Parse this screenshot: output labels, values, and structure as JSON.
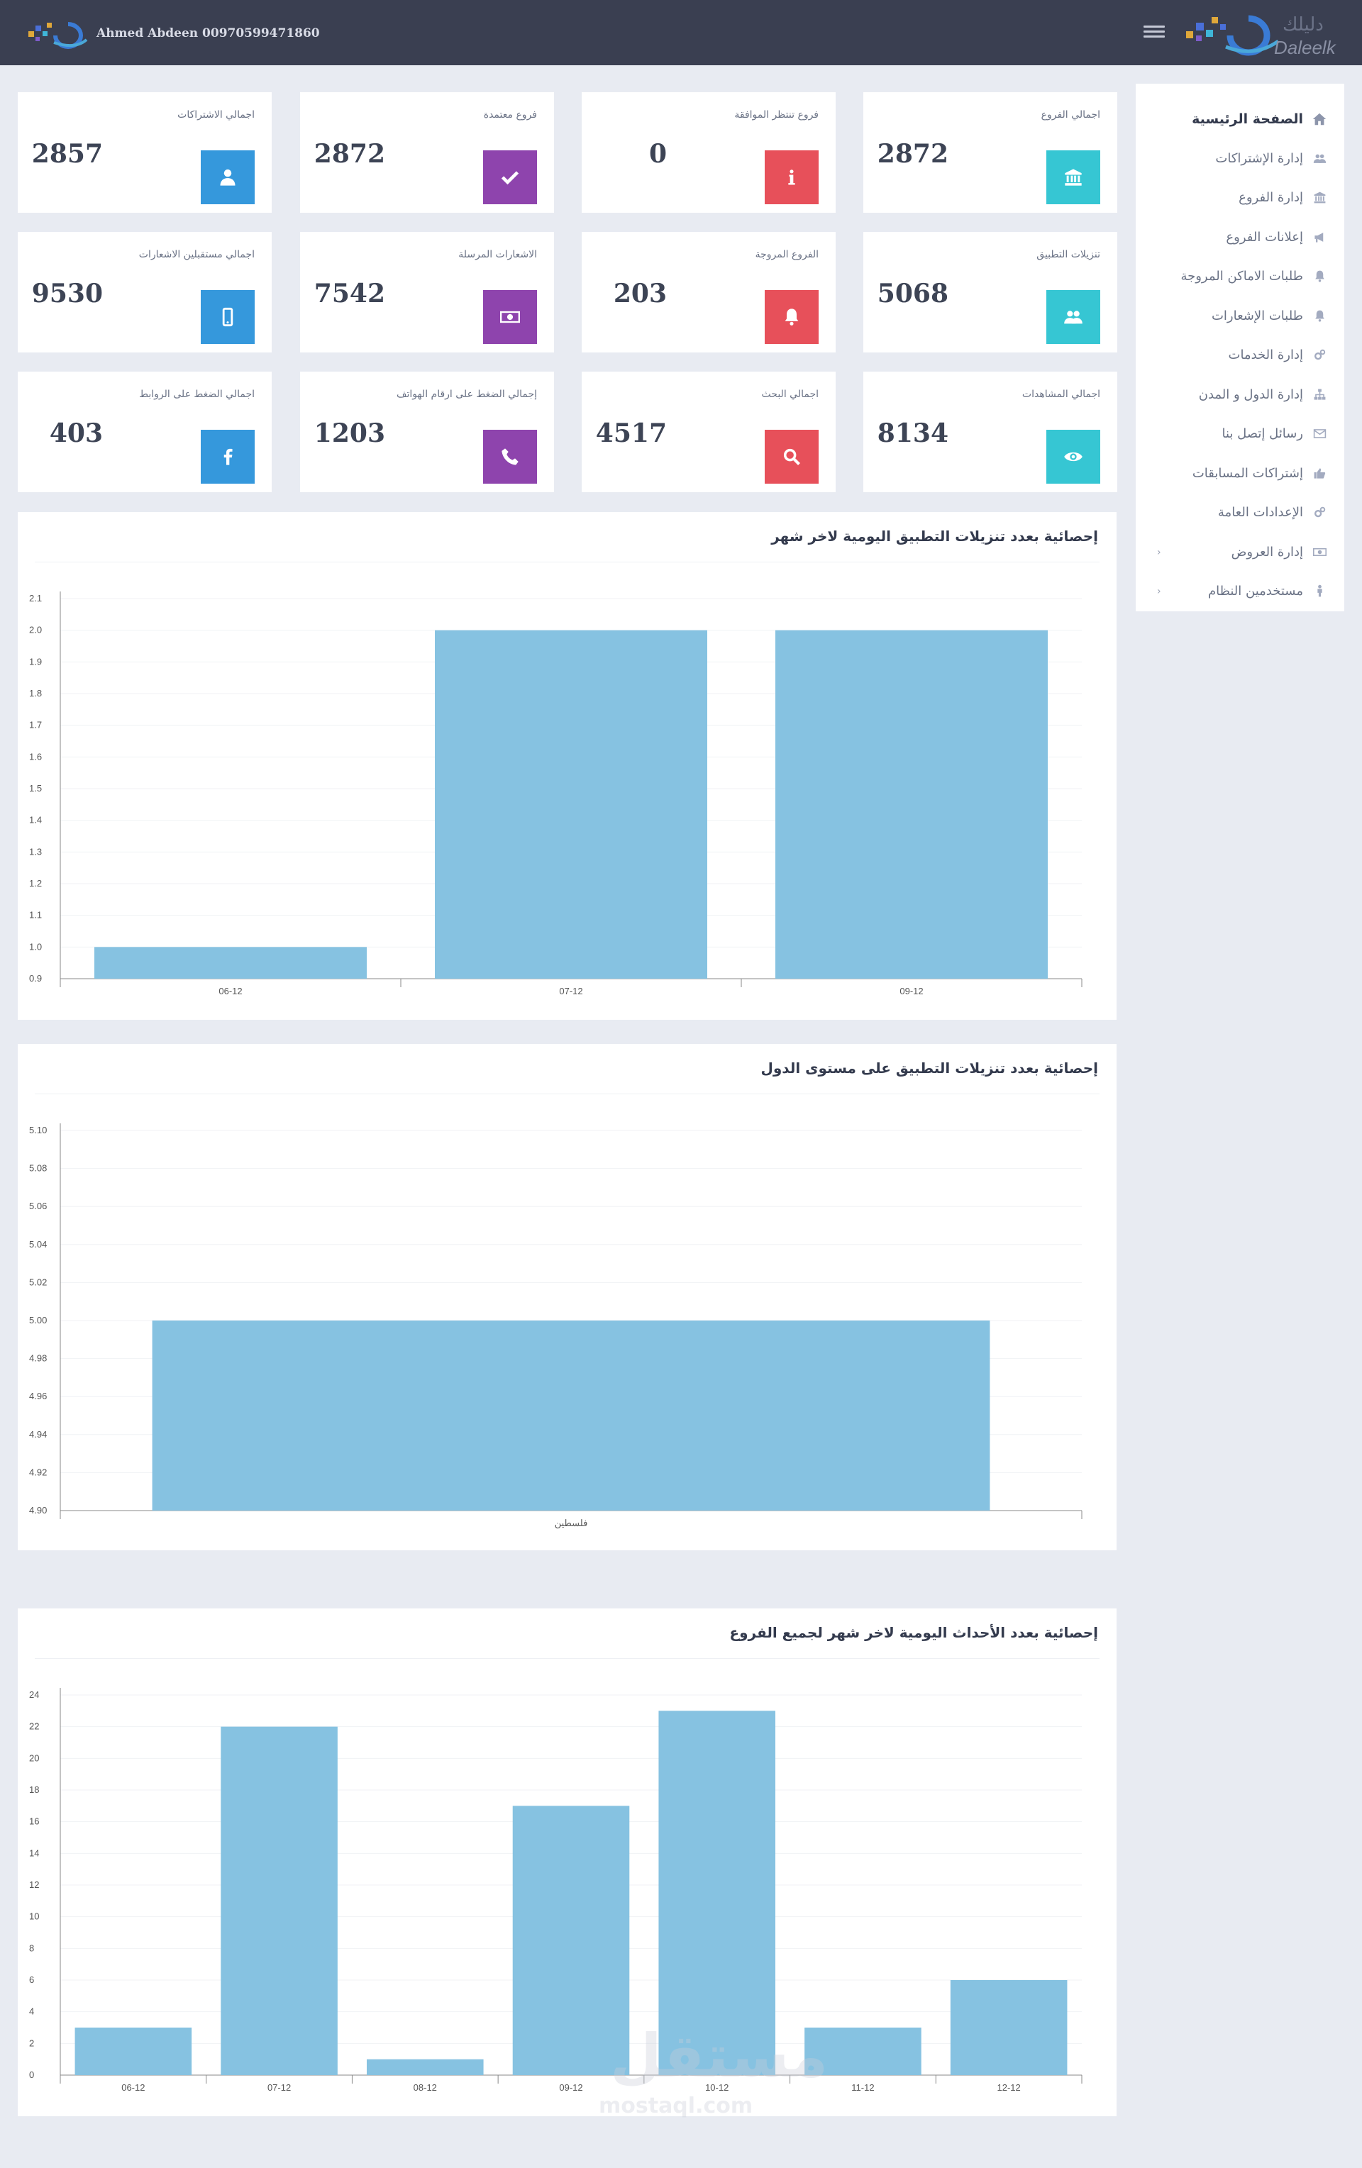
{
  "header": {
    "user_name": "Ahmed Abdeen 00970599471860",
    "brand_ar": "دليلك",
    "brand_en": "Daleelk"
  },
  "sidebar": {
    "items": [
      {
        "label": "الصفحة الرئيسية",
        "icon": "home-icon",
        "active": true,
        "arrow": false
      },
      {
        "label": "إدارة الإشتراكات",
        "icon": "users-icon",
        "active": false,
        "arrow": false
      },
      {
        "label": "إدارة الفروع",
        "icon": "bank-icon",
        "active": false,
        "arrow": false
      },
      {
        "label": "إعلانات الفروع",
        "icon": "megaphone-icon",
        "active": false,
        "arrow": false
      },
      {
        "label": "طلبات الاماكن المروجة",
        "icon": "bell-icon",
        "active": false,
        "arrow": false
      },
      {
        "label": "طلبات الإشعارات",
        "icon": "bell-icon",
        "active": false,
        "arrow": false
      },
      {
        "label": "إدارة الخدمات",
        "icon": "cogs-icon",
        "active": false,
        "arrow": false
      },
      {
        "label": "إدارة الدول و المدن",
        "icon": "sitemap-icon",
        "active": false,
        "arrow": false
      },
      {
        "label": "رسائل إتصل بنا",
        "icon": "envelope-icon",
        "active": false,
        "arrow": false
      },
      {
        "label": "إشتراكات المسابقات",
        "icon": "thumbs-up-icon",
        "active": false,
        "arrow": false
      },
      {
        "label": "الإعدادات العامة",
        "icon": "cogs-icon",
        "active": false,
        "arrow": false
      },
      {
        "label": "إدارة العروض",
        "icon": "money-icon",
        "active": false,
        "arrow": true
      },
      {
        "label": "مستخدمين النظام",
        "icon": "user-male-icon",
        "active": false,
        "arrow": true
      }
    ]
  },
  "stats": [
    {
      "label": "اجمالي الفروع",
      "value": "2872",
      "color": "#36c6d3",
      "icon": "bank-icon"
    },
    {
      "label": "فروع تنتظر الموافقة",
      "value": "0",
      "color": "#e7505a",
      "icon": "info-icon"
    },
    {
      "label": "فروع معتمدة",
      "value": "2872",
      "color": "#8e44ad",
      "icon": "check-icon"
    },
    {
      "label": "اجمالي الاشتراكات",
      "value": "2857",
      "color": "#3598dc",
      "icon": "user-icon"
    },
    {
      "label": "تنزيلات التطبيق",
      "value": "5068",
      "color": "#36c6d3",
      "icon": "users-icon"
    },
    {
      "label": "الفروع المروجة",
      "value": "203",
      "color": "#e7505a",
      "icon": "bell-icon"
    },
    {
      "label": "الاشعارات المرسلة",
      "value": "7542",
      "color": "#8e44ad",
      "icon": "money-icon"
    },
    {
      "label": "اجمالي مستقبلين الاشعارات",
      "value": "9530",
      "color": "#3598dc",
      "icon": "mobile-icon"
    },
    {
      "label": "اجمالي المشاهدات",
      "value": "8134",
      "color": "#36c6d3",
      "icon": "eye-icon"
    },
    {
      "label": "اجمالي البحث",
      "value": "4517",
      "color": "#e7505a",
      "icon": "search-icon"
    },
    {
      "label": "إجمالي الضغط على ارقام الهواتف",
      "value": "1203",
      "color": "#8e44ad",
      "icon": "phone-icon"
    },
    {
      "label": "اجمالي الضغط على الروابط",
      "value": "403",
      "color": "#3598dc",
      "icon": "facebook-icon"
    }
  ],
  "chart_data": [
    {
      "type": "bar",
      "title": "إحصائية بعدد تنزيلات التطبيق اليومية لاخر شهر",
      "categories": [
        "06-12",
        "07-12",
        "09-12"
      ],
      "values": [
        1,
        2,
        2
      ],
      "ylim": [
        0.9,
        2.1
      ],
      "yticks": [
        "0.9",
        "1.0",
        "1.1",
        "1.2",
        "1.3",
        "1.4",
        "1.5",
        "1.6",
        "1.7",
        "1.8",
        "1.9",
        "2.0",
        "2.1"
      ],
      "color": "#86c2e1",
      "grid": true
    },
    {
      "type": "bar",
      "title": "إحصائية بعدد تنزيلات التطبيق على مستوى الدول",
      "categories": [
        "فلسطين"
      ],
      "values": [
        5
      ],
      "ylim": [
        4.9,
        5.1
      ],
      "yticks": [
        "4.90",
        "4.92",
        "4.94",
        "4.96",
        "4.98",
        "5.00",
        "5.02",
        "5.04",
        "5.06",
        "5.08",
        "5.10"
      ],
      "color": "#86c2e1",
      "grid": true
    },
    {
      "type": "bar",
      "title": "إحصائية بعدد الأحداث اليومية لاخر شهر لجميع الفروع",
      "categories": [
        "06-12",
        "07-12",
        "08-12",
        "09-12",
        "10-12",
        "11-12",
        "12-12"
      ],
      "values": [
        3,
        22,
        1,
        17,
        23,
        3,
        6
      ],
      "ylim": [
        0,
        24
      ],
      "yticks": [
        "0",
        "2",
        "4",
        "6",
        "8",
        "10",
        "12",
        "14",
        "16",
        "18",
        "20",
        "22",
        "24"
      ],
      "color": "#86c2e1",
      "grid": true
    }
  ],
  "watermark": {
    "ar": "مستقل",
    "en": "mostaql.com"
  }
}
